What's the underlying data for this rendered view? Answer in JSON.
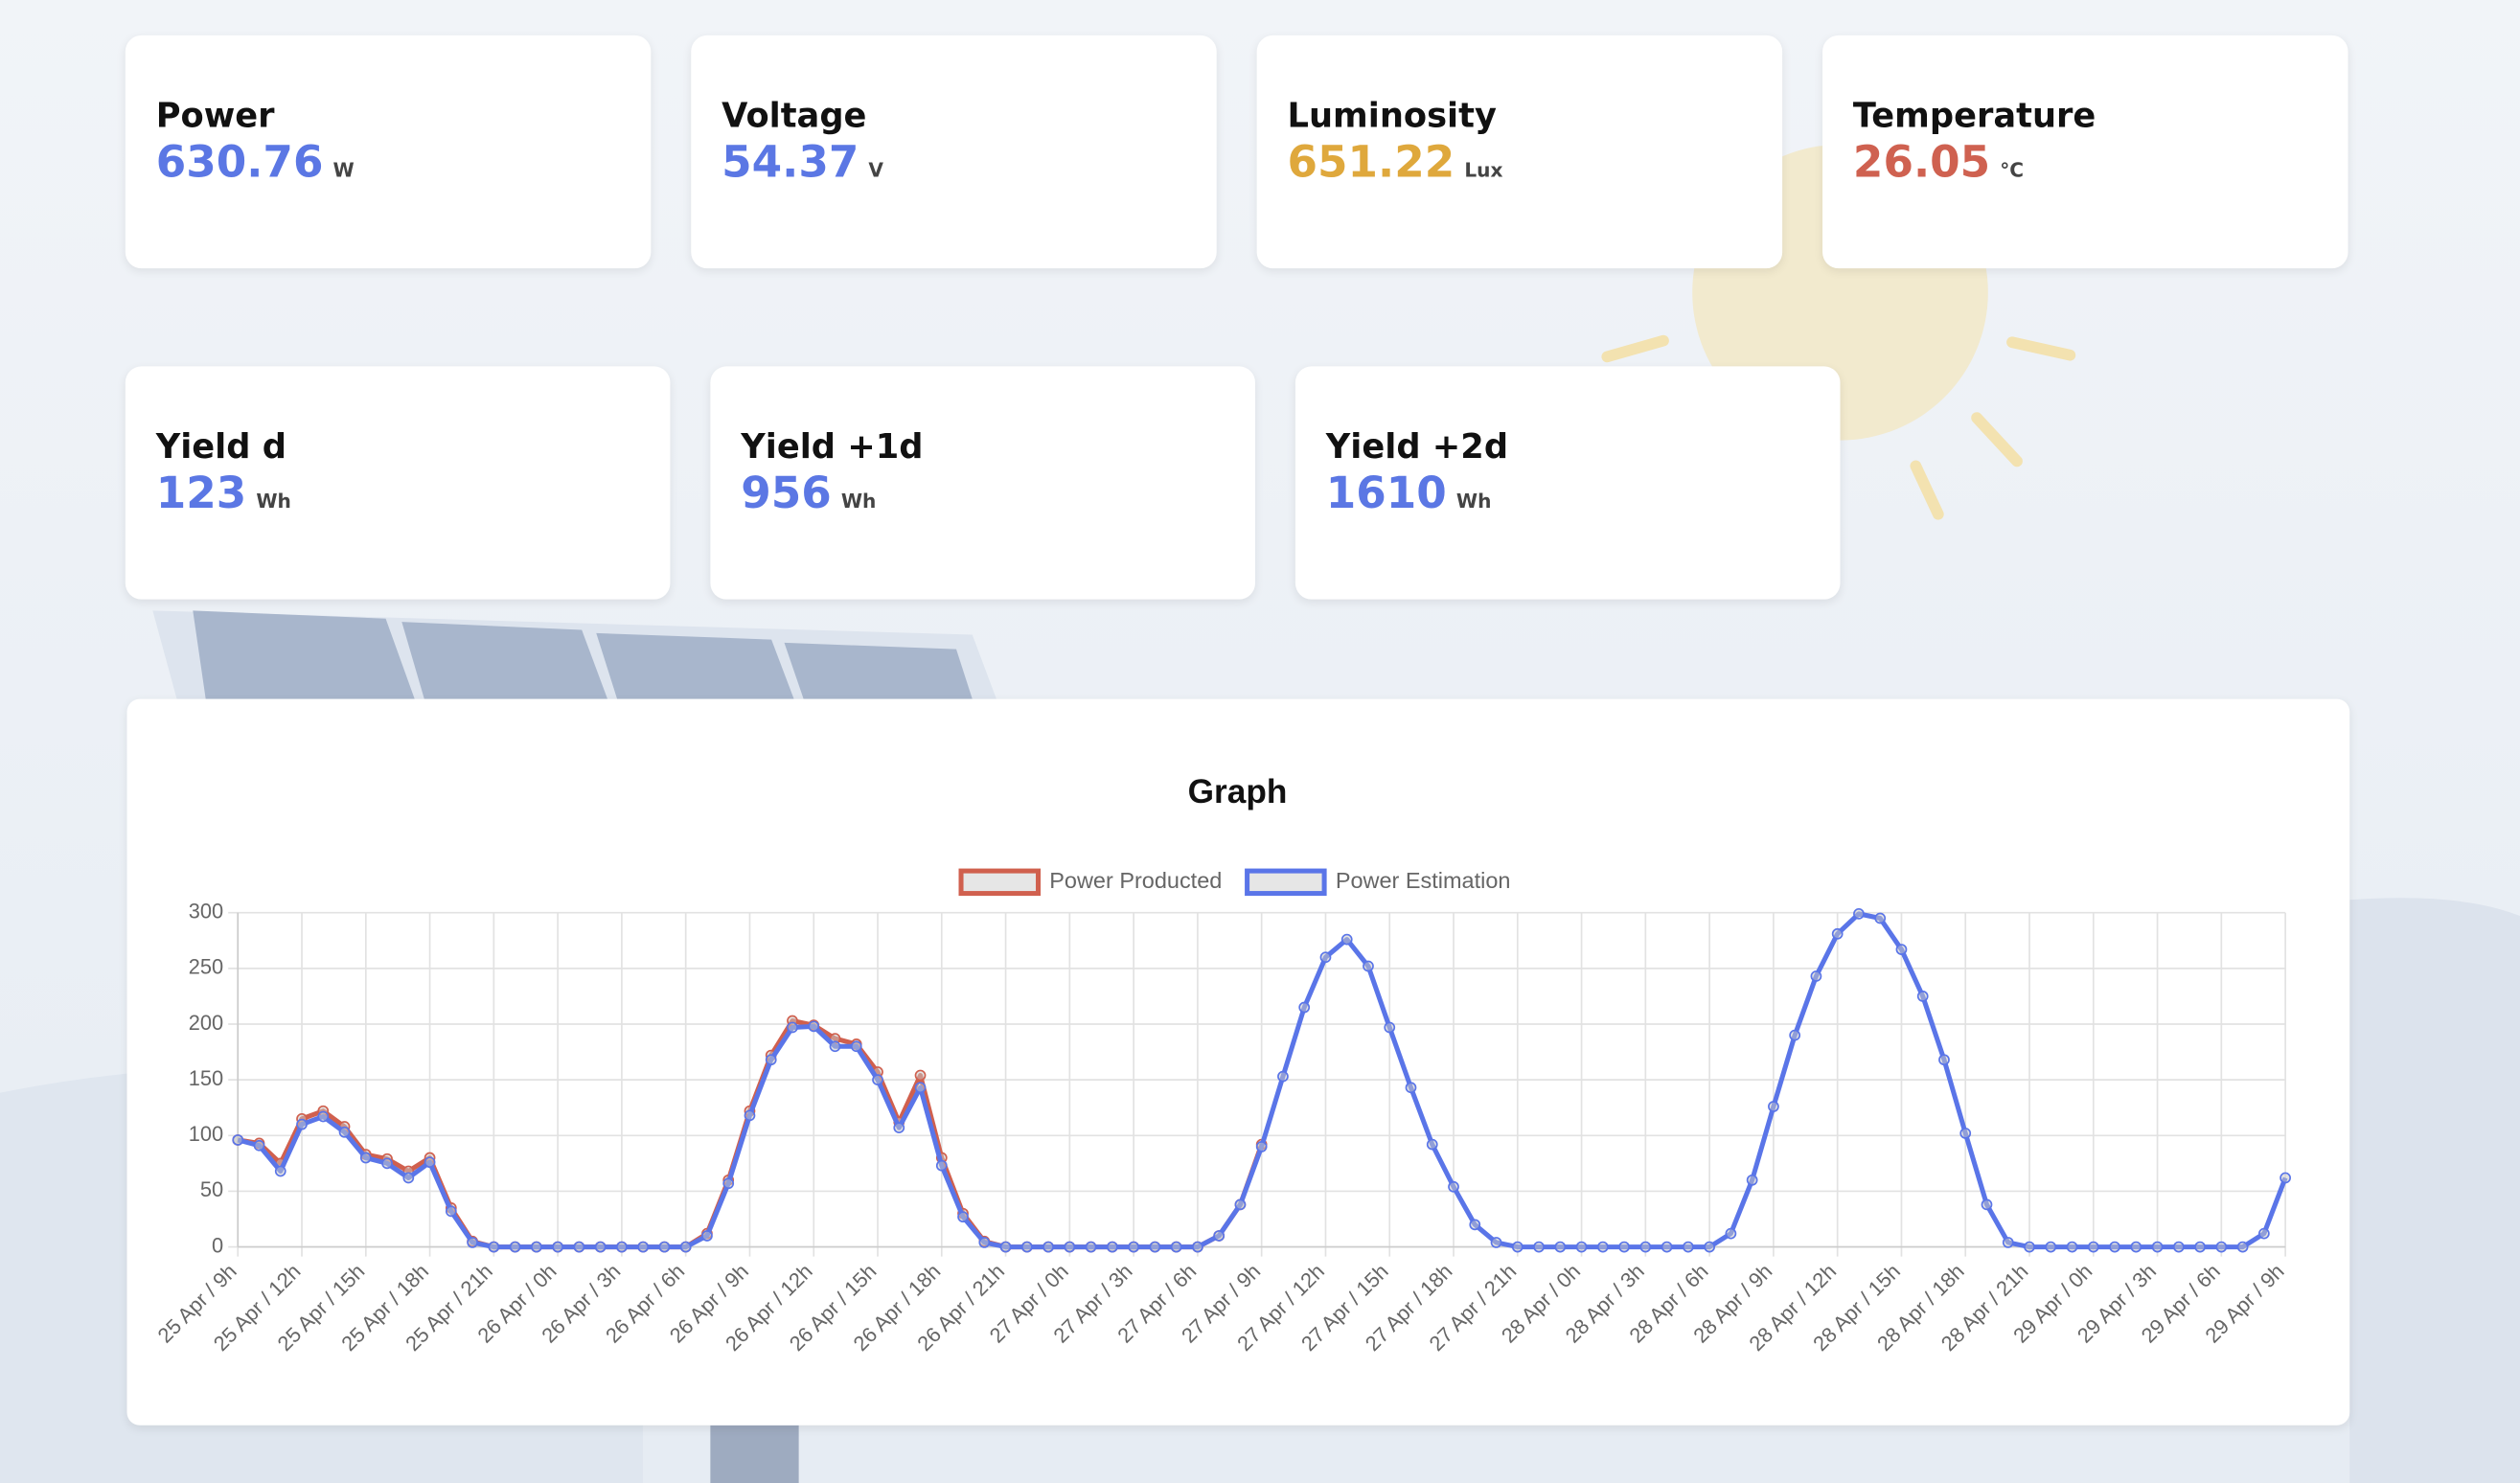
{
  "cards": [
    {
      "title": "Power",
      "value": 630.76,
      "unit": "W",
      "color": "#5b77e4"
    },
    {
      "title": "Voltage",
      "value": 54.37,
      "unit": "V",
      "color": "#5b77e4"
    },
    {
      "title": "Luminosity",
      "value": 651.22,
      "unit": "Lux",
      "color": "#dfa83c"
    },
    {
      "title": "Temperature",
      "value": 26.05,
      "unit": "°C",
      "color": "#cf6150"
    }
  ],
  "yield_cards": [
    {
      "title": "Yield d",
      "value": 123,
      "unit": "Wh",
      "color": "#5b77e4"
    },
    {
      "title": "Yield +1d",
      "value": 956,
      "unit": "Wh",
      "color": "#5b77e4"
    },
    {
      "title": "Yield +2d",
      "value": 1610,
      "unit": "Wh",
      "color": "#5b77e4"
    }
  ],
  "chart_data": {
    "type": "line",
    "title": "Graph",
    "legend": "top",
    "grid": true,
    "categories": [
      "25 Apr / 9h",
      null,
      null,
      "25 Apr / 12h",
      null,
      null,
      "25 Apr / 15h",
      null,
      null,
      "25 Apr / 18h",
      null,
      null,
      "25 Apr / 21h",
      null,
      null,
      "26 Apr / 0h",
      null,
      null,
      "26 Apr / 3h",
      null,
      null,
      "26 Apr / 6h",
      null,
      null,
      "26 Apr / 9h",
      null,
      null,
      "26 Apr / 12h",
      null,
      null,
      "26 Apr / 15h",
      null,
      null,
      "26 Apr / 18h",
      null,
      null,
      "26 Apr / 21h",
      null,
      null,
      "27 Apr / 0h",
      null,
      null,
      "27 Apr / 3h",
      null,
      null,
      "27 Apr / 6h",
      null,
      null,
      "27 Apr / 9h",
      null,
      null,
      "27 Apr / 12h",
      null,
      null,
      "27 Apr / 15h",
      null,
      null,
      "27 Apr / 18h",
      null,
      null,
      "27 Apr / 21h",
      null,
      null,
      "28 Apr / 0h",
      null,
      null,
      "28 Apr / 3h",
      null,
      null,
      "28 Apr / 6h",
      null,
      null,
      "28 Apr / 9h",
      null,
      null,
      "28 Apr / 12h",
      null,
      null,
      "28 Apr / 15h",
      null,
      null,
      "28 Apr / 18h",
      null,
      null,
      "28 Apr / 21h",
      null,
      null,
      "29 Apr / 0h",
      null,
      null,
      "29 Apr / 3h",
      null,
      null,
      "29 Apr / 6h",
      null,
      null,
      "29 Apr / 9h"
    ],
    "series": [
      {
        "name": "Power Producted",
        "color": "#d0604e",
        "values": [
          96,
          93,
          75,
          115,
          122,
          108,
          83,
          79,
          68,
          80,
          35,
          5,
          0,
          0,
          0,
          0,
          0,
          0,
          0,
          0,
          0,
          0,
          12,
          60,
          122,
          172,
          203,
          199,
          187,
          182,
          157,
          112,
          154,
          80,
          30,
          5,
          0,
          0,
          0,
          0,
          0,
          0,
          0,
          0,
          0,
          0,
          10,
          38,
          92,
          null,
          null,
          null,
          null,
          null,
          null,
          null,
          null,
          null,
          null,
          null,
          null,
          null,
          null,
          null,
          null,
          null,
          null,
          null,
          null,
          null,
          null,
          null,
          null,
          null,
          null,
          null,
          null,
          null,
          null,
          null,
          null,
          null,
          null,
          null,
          null,
          null,
          null,
          null,
          null,
          null,
          null,
          null,
          null,
          null,
          null,
          null,
          null
        ]
      },
      {
        "name": "Power Estimation",
        "color": "#5a75e8",
        "values": [
          96,
          91,
          68,
          110,
          117,
          103,
          80,
          75,
          62,
          76,
          32,
          4,
          0,
          0,
          0,
          0,
          0,
          0,
          0,
          0,
          0,
          0,
          10,
          57,
          118,
          168,
          197,
          198,
          180,
          180,
          150,
          107,
          143,
          73,
          27,
          4,
          0,
          0,
          0,
          0,
          0,
          0,
          0,
          0,
          0,
          0,
          10,
          38,
          90,
          153,
          215,
          260,
          276,
          252,
          197,
          143,
          92,
          54,
          20,
          4,
          0,
          0,
          0,
          0,
          0,
          0,
          0,
          0,
          0,
          0,
          12,
          60,
          126,
          190,
          243,
          281,
          299,
          295,
          267,
          225,
          168,
          102,
          38,
          4,
          0,
          0,
          0,
          0,
          0,
          0,
          0,
          0,
          0,
          0,
          0,
          12,
          62
        ]
      }
    ],
    "ylim": [
      0,
      300
    ],
    "yticks": [
      0,
      50,
      100,
      150,
      200,
      250,
      300
    ]
  }
}
